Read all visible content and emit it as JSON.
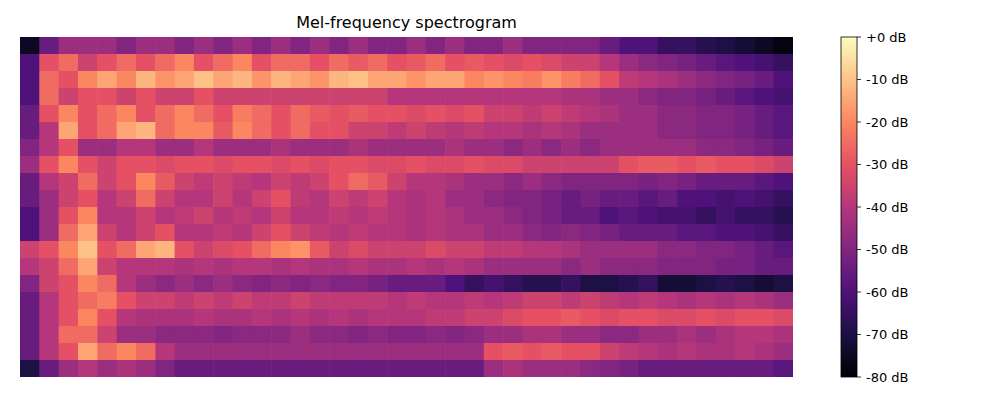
{
  "chart_data": {
    "type": "heatmap",
    "title": "Mel-frequency spectrogram",
    "color": "magma",
    "tick_labels": false,
    "values": [
      [
        -75,
        -55,
        -45,
        -45,
        -45,
        -50,
        -45,
        -45,
        -50,
        -45,
        -50,
        -45,
        -50,
        -45,
        -50,
        -45,
        -50,
        -45,
        -50,
        -50,
        -45,
        -50,
        -45,
        -50,
        -50,
        -45,
        -50,
        -50,
        -50,
        -50,
        -55,
        -60,
        -60,
        -65,
        -65,
        -68,
        -70,
        -72,
        -75,
        -78
      ],
      [
        -60,
        -30,
        -25,
        -35,
        -30,
        -25,
        -30,
        -25,
        -20,
        -30,
        -25,
        -20,
        -30,
        -25,
        -25,
        -30,
        -25,
        -28,
        -25,
        -30,
        -28,
        -25,
        -30,
        -28,
        -30,
        -32,
        -30,
        -32,
        -35,
        -35,
        -40,
        -45,
        -48,
        -50,
        -52,
        -55,
        -58,
        -60,
        -62,
        -65
      ],
      [
        -60,
        -25,
        -30,
        -20,
        -15,
        -20,
        -12,
        -18,
        -15,
        -10,
        -15,
        -12,
        -18,
        -12,
        -15,
        -18,
        -12,
        -10,
        -15,
        -15,
        -18,
        -15,
        -15,
        -20,
        -18,
        -20,
        -22,
        -18,
        -22,
        -25,
        -30,
        -38,
        -40,
        -42,
        -45,
        -48,
        -50,
        -52,
        -55,
        -60
      ],
      [
        -60,
        -25,
        -35,
        -30,
        -30,
        -35,
        -30,
        -35,
        -35,
        -30,
        -35,
        -35,
        -35,
        -35,
        -35,
        -35,
        -35,
        -35,
        -35,
        -40,
        -40,
        -40,
        -40,
        -40,
        -40,
        -40,
        -40,
        -40,
        -42,
        -42,
        -45,
        -45,
        -48,
        -50,
        -50,
        -52,
        -55,
        -58,
        -60,
        -62
      ],
      [
        -55,
        -30,
        -20,
        -30,
        -25,
        -20,
        -30,
        -25,
        -20,
        -25,
        -30,
        -22,
        -25,
        -30,
        -25,
        -28,
        -30,
        -28,
        -30,
        -30,
        -32,
        -30,
        -32,
        -30,
        -35,
        -35,
        -38,
        -35,
        -38,
        -40,
        -42,
        -45,
        -45,
        -48,
        -48,
        -50,
        -50,
        -52,
        -55,
        -58
      ],
      [
        -55,
        -40,
        -15,
        -30,
        -25,
        -15,
        -12,
        -25,
        -20,
        -20,
        -28,
        -20,
        -25,
        -30,
        -25,
        -30,
        -30,
        -35,
        -35,
        -38,
        -35,
        -38,
        -40,
        -38,
        -40,
        -40,
        -42,
        -40,
        -42,
        -45,
        -45,
        -45,
        -45,
        -48,
        -48,
        -50,
        -50,
        -52,
        -55,
        -58
      ],
      [
        -50,
        -40,
        -30,
        -45,
        -45,
        -40,
        -40,
        -45,
        -45,
        -40,
        -45,
        -45,
        -45,
        -42,
        -45,
        -45,
        -45,
        -42,
        -45,
        -45,
        -45,
        -45,
        -42,
        -45,
        -45,
        -48,
        -45,
        -48,
        -45,
        -48,
        -45,
        -45,
        -45,
        -45,
        -45,
        -48,
        -48,
        -50,
        -52,
        -55
      ],
      [
        -45,
        -30,
        -20,
        -30,
        -35,
        -30,
        -30,
        -32,
        -30,
        -30,
        -32,
        -30,
        -30,
        -32,
        -30,
        -32,
        -30,
        -30,
        -32,
        -32,
        -30,
        -32,
        -32,
        -30,
        -32,
        -32,
        -35,
        -35,
        -35,
        -35,
        -35,
        -30,
        -28,
        -28,
        -30,
        -28,
        -30,
        -30,
        -32,
        -35
      ],
      [
        -55,
        -40,
        -35,
        -25,
        -35,
        -30,
        -20,
        -28,
        -35,
        -38,
        -35,
        -38,
        -40,
        -35,
        -38,
        -35,
        -30,
        -25,
        -28,
        -35,
        -40,
        -40,
        -42,
        -45,
        -45,
        -48,
        -45,
        -48,
        -50,
        -50,
        -50,
        -50,
        -52,
        -50,
        -52,
        -55,
        -55,
        -55,
        -58,
        -60
      ],
      [
        -55,
        -45,
        -35,
        -30,
        -40,
        -35,
        -25,
        -35,
        -40,
        -40,
        -35,
        -40,
        -35,
        -30,
        -38,
        -40,
        -35,
        -38,
        -35,
        -40,
        -42,
        -40,
        -45,
        -45,
        -48,
        -50,
        -50,
        -52,
        -55,
        -52,
        -55,
        -55,
        -58,
        -55,
        -60,
        -60,
        -62,
        -60,
        -62,
        -65
      ],
      [
        -60,
        -45,
        -30,
        -20,
        -40,
        -40,
        -35,
        -40,
        -38,
        -35,
        -40,
        -38,
        -40,
        -35,
        -40,
        -40,
        -38,
        -40,
        -38,
        -40,
        -42,
        -40,
        -42,
        -45,
        -45,
        -48,
        -50,
        -52,
        -55,
        -55,
        -60,
        -58,
        -60,
        -62,
        -62,
        -65,
        -62,
        -65,
        -65,
        -68
      ],
      [
        -60,
        -45,
        -25,
        -15,
        -35,
        -40,
        -35,
        -30,
        -40,
        -40,
        -38,
        -40,
        -35,
        -30,
        -35,
        -38,
        -40,
        -38,
        -40,
        -40,
        -42,
        -40,
        -42,
        -42,
        -45,
        -45,
        -48,
        -50,
        -48,
        -50,
        -52,
        -55,
        -55,
        -55,
        -58,
        -58,
        -60,
        -60,
        -62,
        -65
      ],
      [
        -35,
        -30,
        -20,
        -10,
        -30,
        -25,
        -15,
        -12,
        -30,
        -35,
        -32,
        -30,
        -25,
        -20,
        -18,
        -28,
        -35,
        -32,
        -35,
        -35,
        -35,
        -32,
        -35,
        -35,
        -38,
        -38,
        -40,
        -40,
        -42,
        -45,
        -45,
        -45,
        -45,
        -48,
        -48,
        -50,
        -50,
        -52,
        -55,
        -58
      ],
      [
        -40,
        -35,
        -25,
        -15,
        -35,
        -40,
        -40,
        -40,
        -42,
        -40,
        -42,
        -40,
        -40,
        -42,
        -40,
        -42,
        -42,
        -40,
        -42,
        -42,
        -40,
        -42,
        -40,
        -42,
        -45,
        -45,
        -45,
        -45,
        -48,
        -45,
        -48,
        -48,
        -48,
        -50,
        -50,
        -50,
        -52,
        -52,
        -55,
        -55
      ],
      [
        -50,
        -35,
        -30,
        -20,
        -25,
        -40,
        -45,
        -48,
        -45,
        -48,
        -45,
        -48,
        -50,
        -48,
        -50,
        -48,
        -50,
        -50,
        -52,
        -55,
        -55,
        -55,
        -60,
        -65,
        -62,
        -65,
        -68,
        -68,
        -65,
        -70,
        -70,
        -68,
        -65,
        -72,
        -72,
        -70,
        -68,
        -70,
        -72,
        -70
      ],
      [
        -55,
        -40,
        -30,
        -25,
        -22,
        -30,
        -35,
        -35,
        -38,
        -35,
        -38,
        -35,
        -38,
        -38,
        -35,
        -38,
        -38,
        -38,
        -38,
        -40,
        -38,
        -40,
        -40,
        -38,
        -40,
        -38,
        -35,
        -35,
        -38,
        -35,
        -38,
        -40,
        -38,
        -40,
        -42,
        -40,
        -42,
        -40,
        -42,
        -45
      ],
      [
        -55,
        -40,
        -30,
        -20,
        -30,
        -40,
        -42,
        -42,
        -42,
        -40,
        -42,
        -42,
        -40,
        -42,
        -40,
        -42,
        -40,
        -42,
        -40,
        -40,
        -40,
        -38,
        -38,
        -35,
        -35,
        -32,
        -30,
        -30,
        -28,
        -30,
        -32,
        -30,
        -30,
        -32,
        -32,
        -30,
        -32,
        -30,
        -30,
        -32
      ],
      [
        -55,
        -40,
        -25,
        -25,
        -35,
        -45,
        -45,
        -48,
        -48,
        -48,
        -50,
        -48,
        -48,
        -48,
        -45,
        -48,
        -48,
        -50,
        -48,
        -50,
        -50,
        -48,
        -50,
        -48,
        -45,
        -45,
        -42,
        -42,
        -45,
        -45,
        -48,
        -48,
        -45,
        -45,
        -42,
        -45,
        -42,
        -40,
        -40,
        -42
      ],
      [
        -55,
        -40,
        -30,
        -15,
        -25,
        -20,
        -25,
        -40,
        -45,
        -45,
        -45,
        -45,
        -45,
        -45,
        -45,
        -45,
        -45,
        -45,
        -45,
        -45,
        -45,
        -45,
        -45,
        -45,
        -30,
        -28,
        -30,
        -28,
        -30,
        -30,
        -35,
        -38,
        -40,
        -42,
        -40,
        -42,
        -42,
        -40,
        -42,
        -45
      ],
      [
        -70,
        -55,
        -45,
        -40,
        -45,
        -42,
        -45,
        -50,
        -55,
        -55,
        -55,
        -55,
        -55,
        -55,
        -55,
        -55,
        -55,
        -55,
        -55,
        -55,
        -55,
        -55,
        -55,
        -55,
        -45,
        -42,
        -45,
        -45,
        -45,
        -48,
        -50,
        -52,
        -55,
        -55,
        -55,
        -55,
        -55,
        -55,
        -55,
        -58
      ]
    ],
    "colorbar_lim": [
      -80,
      0
    ],
    "colorbar_ticks": [
      {
        "value": 0,
        "label": "+0 dB"
      },
      {
        "value": -10,
        "label": "-10 dB"
      },
      {
        "value": -20,
        "label": "-20 dB"
      },
      {
        "value": -30,
        "label": "-30 dB"
      },
      {
        "value": -40,
        "label": "-40 dB"
      },
      {
        "value": -50,
        "label": "-50 dB"
      },
      {
        "value": -60,
        "label": "-60 dB"
      },
      {
        "value": -70,
        "label": "-70 dB"
      },
      {
        "value": -80,
        "label": "-80 dB"
      }
    ]
  }
}
